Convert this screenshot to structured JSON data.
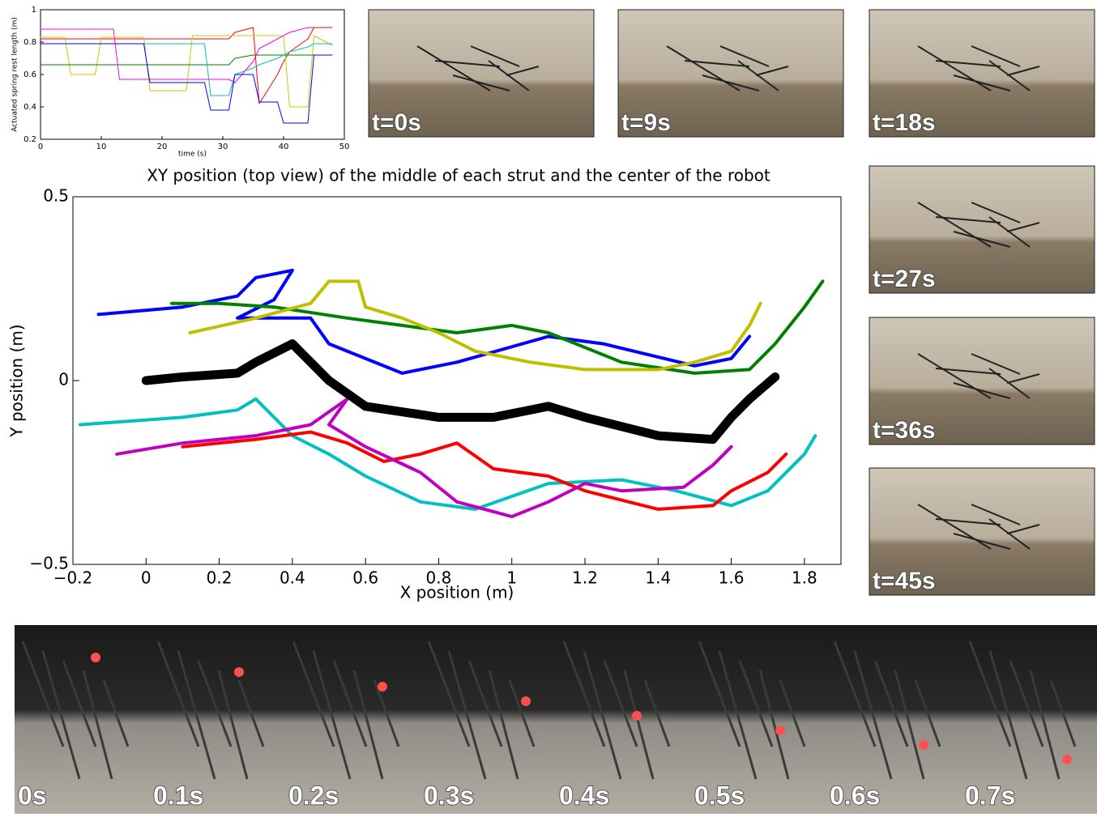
{
  "chart_data": [
    {
      "type": "line",
      "xlabel": "time (s)",
      "ylabel": "Actuated spring rest length (m)",
      "x": [
        0,
        4,
        5,
        9,
        10,
        12,
        13,
        17,
        18,
        21,
        24,
        25,
        27,
        28,
        31,
        32,
        35,
        36,
        39,
        40,
        41,
        44,
        45,
        48
      ],
      "xlim": [
        0,
        50
      ],
      "ylim": [
        0.2,
        1
      ],
      "xticks": [
        0,
        10,
        20,
        30,
        40,
        50
      ],
      "yticks": [
        0.2,
        0.4,
        0.6,
        0.8,
        1
      ],
      "series": [
        {
          "color": "#ff00ff",
          "values": [
            0.88,
            0.88,
            0.88,
            0.88,
            0.88,
            0.88,
            0.57,
            0.57,
            0.57,
            0.57,
            0.57,
            0.57,
            0.57,
            0.57,
            0.57,
            0.55,
            0.68,
            0.76,
            0.82,
            0.84,
            0.86,
            0.89,
            0.89,
            0.89
          ]
        },
        {
          "color": "#ff0000",
          "values": [
            0.82,
            0.82,
            0.82,
            0.82,
            0.82,
            0.82,
            0.82,
            0.82,
            0.82,
            0.82,
            0.82,
            0.82,
            0.82,
            0.82,
            0.82,
            0.86,
            0.89,
            0.42,
            0.6,
            0.68,
            0.74,
            0.82,
            0.89,
            0.89
          ]
        },
        {
          "color": "#c8c800",
          "values": [
            0.83,
            0.83,
            0.6,
            0.6,
            0.83,
            0.83,
            0.83,
            0.83,
            0.5,
            0.5,
            0.5,
            0.84,
            0.84,
            0.84,
            0.84,
            0.84,
            0.84,
            0.84,
            0.84,
            0.84,
            0.4,
            0.4,
            0.84,
            0.78
          ]
        },
        {
          "color": "#008000",
          "values": [
            0.66,
            0.66,
            0.66,
            0.66,
            0.66,
            0.66,
            0.66,
            0.66,
            0.66,
            0.66,
            0.66,
            0.66,
            0.66,
            0.66,
            0.66,
            0.7,
            0.72,
            0.72,
            0.72,
            0.72,
            0.72,
            0.72,
            0.72,
            0.72
          ]
        },
        {
          "color": "#00c0c0",
          "values": [
            0.79,
            0.79,
            0.79,
            0.79,
            0.79,
            0.79,
            0.79,
            0.79,
            0.79,
            0.79,
            0.79,
            0.79,
            0.79,
            0.47,
            0.47,
            0.6,
            0.64,
            0.66,
            0.7,
            0.72,
            0.74,
            0.77,
            0.79,
            0.79
          ]
        },
        {
          "color": "#0000ff",
          "values": [
            0.79,
            0.79,
            0.79,
            0.79,
            0.79,
            0.79,
            0.79,
            0.79,
            0.55,
            0.55,
            0.55,
            0.55,
            0.55,
            0.38,
            0.38,
            0.6,
            0.6,
            0.43,
            0.43,
            0.3,
            0.3,
            0.3,
            0.72,
            0.72
          ]
        }
      ]
    },
    {
      "type": "line",
      "title": "XY position (top view) of the middle of each strut and the center of the robot",
      "xlabel": "X position (m)",
      "ylabel": "Y position (m)",
      "xlim": [
        -0.2,
        1.9
      ],
      "ylim": [
        -0.5,
        0.5
      ],
      "xticks": [
        {
          "value": -0.2,
          "label": "−0.2"
        },
        0,
        0.2,
        0.4,
        0.6,
        0.8,
        1,
        1.2,
        1.4,
        1.6,
        1.8
      ],
      "yticks": [
        {
          "value": -0.5,
          "label": "−0.5"
        },
        0,
        0.5
      ],
      "series": [
        {
          "color": "#0000ff",
          "width": 4,
          "x": [
            -0.13,
            0.1,
            0.25,
            0.3,
            0.4,
            0.35,
            0.25,
            0.45,
            0.5,
            0.7,
            0.85,
            1.1,
            1.25,
            1.5,
            1.6,
            1.65
          ],
          "values": [
            0.18,
            0.2,
            0.23,
            0.28,
            0.3,
            0.22,
            0.17,
            0.17,
            0.1,
            0.02,
            0.05,
            0.12,
            0.1,
            0.04,
            0.06,
            0.12
          ]
        },
        {
          "color": "#008000",
          "width": 4,
          "x": [
            0.07,
            0.2,
            0.35,
            0.55,
            0.7,
            0.85,
            1.0,
            1.1,
            1.3,
            1.5,
            1.65,
            1.72,
            1.8,
            1.85
          ],
          "values": [
            0.21,
            0.21,
            0.2,
            0.17,
            0.15,
            0.13,
            0.15,
            0.13,
            0.05,
            0.02,
            0.03,
            0.1,
            0.2,
            0.27
          ]
        },
        {
          "color": "#bfbf00",
          "width": 4,
          "x": [
            0.12,
            0.3,
            0.45,
            0.5,
            0.58,
            0.6,
            0.7,
            0.8,
            0.9,
            1.05,
            1.2,
            1.4,
            1.5,
            1.6,
            1.65,
            1.68
          ],
          "values": [
            0.13,
            0.17,
            0.21,
            0.27,
            0.27,
            0.2,
            0.17,
            0.13,
            0.08,
            0.05,
            0.03,
            0.03,
            0.05,
            0.08,
            0.15,
            0.21
          ]
        },
        {
          "color": "#00c0c0",
          "width": 4,
          "x": [
            -0.18,
            0.1,
            0.25,
            0.3,
            0.4,
            0.5,
            0.6,
            0.75,
            0.9,
            1.1,
            1.3,
            1.45,
            1.6,
            1.7,
            1.8,
            1.83
          ],
          "values": [
            -0.12,
            -0.1,
            -0.08,
            -0.05,
            -0.15,
            -0.2,
            -0.26,
            -0.33,
            -0.35,
            -0.28,
            -0.27,
            -0.3,
            -0.34,
            -0.3,
            -0.2,
            -0.15
          ]
        },
        {
          "color": "#ff0000",
          "width": 4,
          "x": [
            0.1,
            0.3,
            0.45,
            0.55,
            0.65,
            0.75,
            0.85,
            0.95,
            1.1,
            1.2,
            1.4,
            1.55,
            1.6,
            1.7,
            1.75
          ],
          "values": [
            -0.18,
            -0.16,
            -0.14,
            -0.17,
            -0.22,
            -0.2,
            -0.17,
            -0.24,
            -0.26,
            -0.3,
            -0.35,
            -0.34,
            -0.3,
            -0.25,
            -0.2
          ]
        },
        {
          "color": "#c000c0",
          "width": 4,
          "x": [
            -0.08,
            0.1,
            0.3,
            0.45,
            0.55,
            0.5,
            0.6,
            0.75,
            0.85,
            1.0,
            1.1,
            1.2,
            1.3,
            1.47,
            1.55,
            1.6
          ],
          "values": [
            -0.2,
            -0.17,
            -0.15,
            -0.12,
            -0.05,
            -0.12,
            -0.18,
            -0.25,
            -0.33,
            -0.37,
            -0.33,
            -0.28,
            -0.3,
            -0.29,
            -0.23,
            -0.18
          ]
        },
        {
          "color": "#000000",
          "width": 11,
          "x": [
            0,
            0.1,
            0.25,
            0.3,
            0.4,
            0.45,
            0.5,
            0.6,
            0.8,
            0.95,
            1.1,
            1.2,
            1.4,
            1.55,
            1.6,
            1.65,
            1.72
          ],
          "values": [
            0,
            0.01,
            0.02,
            0.05,
            0.1,
            0.05,
            0,
            -0.07,
            -0.1,
            -0.1,
            -0.07,
            -0.1,
            -0.15,
            -0.16,
            -0.1,
            -0.05,
            0.01
          ]
        }
      ]
    }
  ],
  "photos": [
    "t=0s",
    "t=9s",
    "t=18s",
    "t=27s",
    "t=36s",
    "t=45s"
  ],
  "frames": [
    "0s",
    "0.1s",
    "0.2s",
    "0.3s",
    "0.4s",
    "0.5s",
    "0.6s",
    "0.7s"
  ]
}
